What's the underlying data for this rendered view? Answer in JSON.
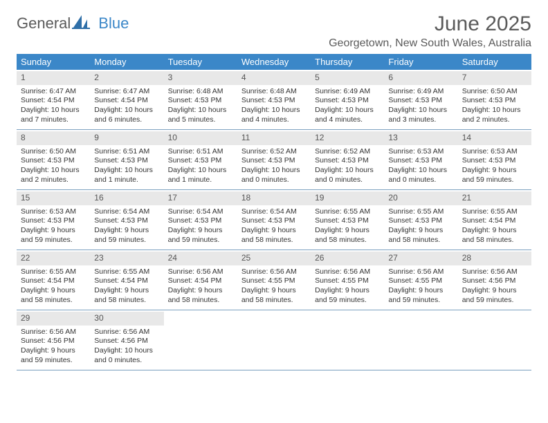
{
  "logo": {
    "general": "General",
    "blue": "Blue"
  },
  "title": "June 2025",
  "location": "Georgetown, New South Wales, Australia",
  "colors": {
    "header_bg": "#3b87c8",
    "header_text": "#ffffff",
    "daynum_bg": "#e8e8e8",
    "week_border": "#7a9fbf",
    "text": "#333333",
    "title_text": "#5a5a5a"
  },
  "weekdays": [
    "Sunday",
    "Monday",
    "Tuesday",
    "Wednesday",
    "Thursday",
    "Friday",
    "Saturday"
  ],
  "days": [
    {
      "n": "1",
      "sunrise": "Sunrise: 6:47 AM",
      "sunset": "Sunset: 4:54 PM",
      "d1": "Daylight: 10 hours",
      "d2": "and 7 minutes."
    },
    {
      "n": "2",
      "sunrise": "Sunrise: 6:47 AM",
      "sunset": "Sunset: 4:54 PM",
      "d1": "Daylight: 10 hours",
      "d2": "and 6 minutes."
    },
    {
      "n": "3",
      "sunrise": "Sunrise: 6:48 AM",
      "sunset": "Sunset: 4:53 PM",
      "d1": "Daylight: 10 hours",
      "d2": "and 5 minutes."
    },
    {
      "n": "4",
      "sunrise": "Sunrise: 6:48 AM",
      "sunset": "Sunset: 4:53 PM",
      "d1": "Daylight: 10 hours",
      "d2": "and 4 minutes."
    },
    {
      "n": "5",
      "sunrise": "Sunrise: 6:49 AM",
      "sunset": "Sunset: 4:53 PM",
      "d1": "Daylight: 10 hours",
      "d2": "and 4 minutes."
    },
    {
      "n": "6",
      "sunrise": "Sunrise: 6:49 AM",
      "sunset": "Sunset: 4:53 PM",
      "d1": "Daylight: 10 hours",
      "d2": "and 3 minutes."
    },
    {
      "n": "7",
      "sunrise": "Sunrise: 6:50 AM",
      "sunset": "Sunset: 4:53 PM",
      "d1": "Daylight: 10 hours",
      "d2": "and 2 minutes."
    },
    {
      "n": "8",
      "sunrise": "Sunrise: 6:50 AM",
      "sunset": "Sunset: 4:53 PM",
      "d1": "Daylight: 10 hours",
      "d2": "and 2 minutes."
    },
    {
      "n": "9",
      "sunrise": "Sunrise: 6:51 AM",
      "sunset": "Sunset: 4:53 PM",
      "d1": "Daylight: 10 hours",
      "d2": "and 1 minute."
    },
    {
      "n": "10",
      "sunrise": "Sunrise: 6:51 AM",
      "sunset": "Sunset: 4:53 PM",
      "d1": "Daylight: 10 hours",
      "d2": "and 1 minute."
    },
    {
      "n": "11",
      "sunrise": "Sunrise: 6:52 AM",
      "sunset": "Sunset: 4:53 PM",
      "d1": "Daylight: 10 hours",
      "d2": "and 0 minutes."
    },
    {
      "n": "12",
      "sunrise": "Sunrise: 6:52 AM",
      "sunset": "Sunset: 4:53 PM",
      "d1": "Daylight: 10 hours",
      "d2": "and 0 minutes."
    },
    {
      "n": "13",
      "sunrise": "Sunrise: 6:53 AM",
      "sunset": "Sunset: 4:53 PM",
      "d1": "Daylight: 10 hours",
      "d2": "and 0 minutes."
    },
    {
      "n": "14",
      "sunrise": "Sunrise: 6:53 AM",
      "sunset": "Sunset: 4:53 PM",
      "d1": "Daylight: 9 hours",
      "d2": "and 59 minutes."
    },
    {
      "n": "15",
      "sunrise": "Sunrise: 6:53 AM",
      "sunset": "Sunset: 4:53 PM",
      "d1": "Daylight: 9 hours",
      "d2": "and 59 minutes."
    },
    {
      "n": "16",
      "sunrise": "Sunrise: 6:54 AM",
      "sunset": "Sunset: 4:53 PM",
      "d1": "Daylight: 9 hours",
      "d2": "and 59 minutes."
    },
    {
      "n": "17",
      "sunrise": "Sunrise: 6:54 AM",
      "sunset": "Sunset: 4:53 PM",
      "d1": "Daylight: 9 hours",
      "d2": "and 59 minutes."
    },
    {
      "n": "18",
      "sunrise": "Sunrise: 6:54 AM",
      "sunset": "Sunset: 4:53 PM",
      "d1": "Daylight: 9 hours",
      "d2": "and 58 minutes."
    },
    {
      "n": "19",
      "sunrise": "Sunrise: 6:55 AM",
      "sunset": "Sunset: 4:53 PM",
      "d1": "Daylight: 9 hours",
      "d2": "and 58 minutes."
    },
    {
      "n": "20",
      "sunrise": "Sunrise: 6:55 AM",
      "sunset": "Sunset: 4:53 PM",
      "d1": "Daylight: 9 hours",
      "d2": "and 58 minutes."
    },
    {
      "n": "21",
      "sunrise": "Sunrise: 6:55 AM",
      "sunset": "Sunset: 4:54 PM",
      "d1": "Daylight: 9 hours",
      "d2": "and 58 minutes."
    },
    {
      "n": "22",
      "sunrise": "Sunrise: 6:55 AM",
      "sunset": "Sunset: 4:54 PM",
      "d1": "Daylight: 9 hours",
      "d2": "and 58 minutes."
    },
    {
      "n": "23",
      "sunrise": "Sunrise: 6:55 AM",
      "sunset": "Sunset: 4:54 PM",
      "d1": "Daylight: 9 hours",
      "d2": "and 58 minutes."
    },
    {
      "n": "24",
      "sunrise": "Sunrise: 6:56 AM",
      "sunset": "Sunset: 4:54 PM",
      "d1": "Daylight: 9 hours",
      "d2": "and 58 minutes."
    },
    {
      "n": "25",
      "sunrise": "Sunrise: 6:56 AM",
      "sunset": "Sunset: 4:55 PM",
      "d1": "Daylight: 9 hours",
      "d2": "and 58 minutes."
    },
    {
      "n": "26",
      "sunrise": "Sunrise: 6:56 AM",
      "sunset": "Sunset: 4:55 PM",
      "d1": "Daylight: 9 hours",
      "d2": "and 59 minutes."
    },
    {
      "n": "27",
      "sunrise": "Sunrise: 6:56 AM",
      "sunset": "Sunset: 4:55 PM",
      "d1": "Daylight: 9 hours",
      "d2": "and 59 minutes."
    },
    {
      "n": "28",
      "sunrise": "Sunrise: 6:56 AM",
      "sunset": "Sunset: 4:56 PM",
      "d1": "Daylight: 9 hours",
      "d2": "and 59 minutes."
    },
    {
      "n": "29",
      "sunrise": "Sunrise: 6:56 AM",
      "sunset": "Sunset: 4:56 PM",
      "d1": "Daylight: 9 hours",
      "d2": "and 59 minutes."
    },
    {
      "n": "30",
      "sunrise": "Sunrise: 6:56 AM",
      "sunset": "Sunset: 4:56 PM",
      "d1": "Daylight: 10 hours",
      "d2": "and 0 minutes."
    }
  ]
}
